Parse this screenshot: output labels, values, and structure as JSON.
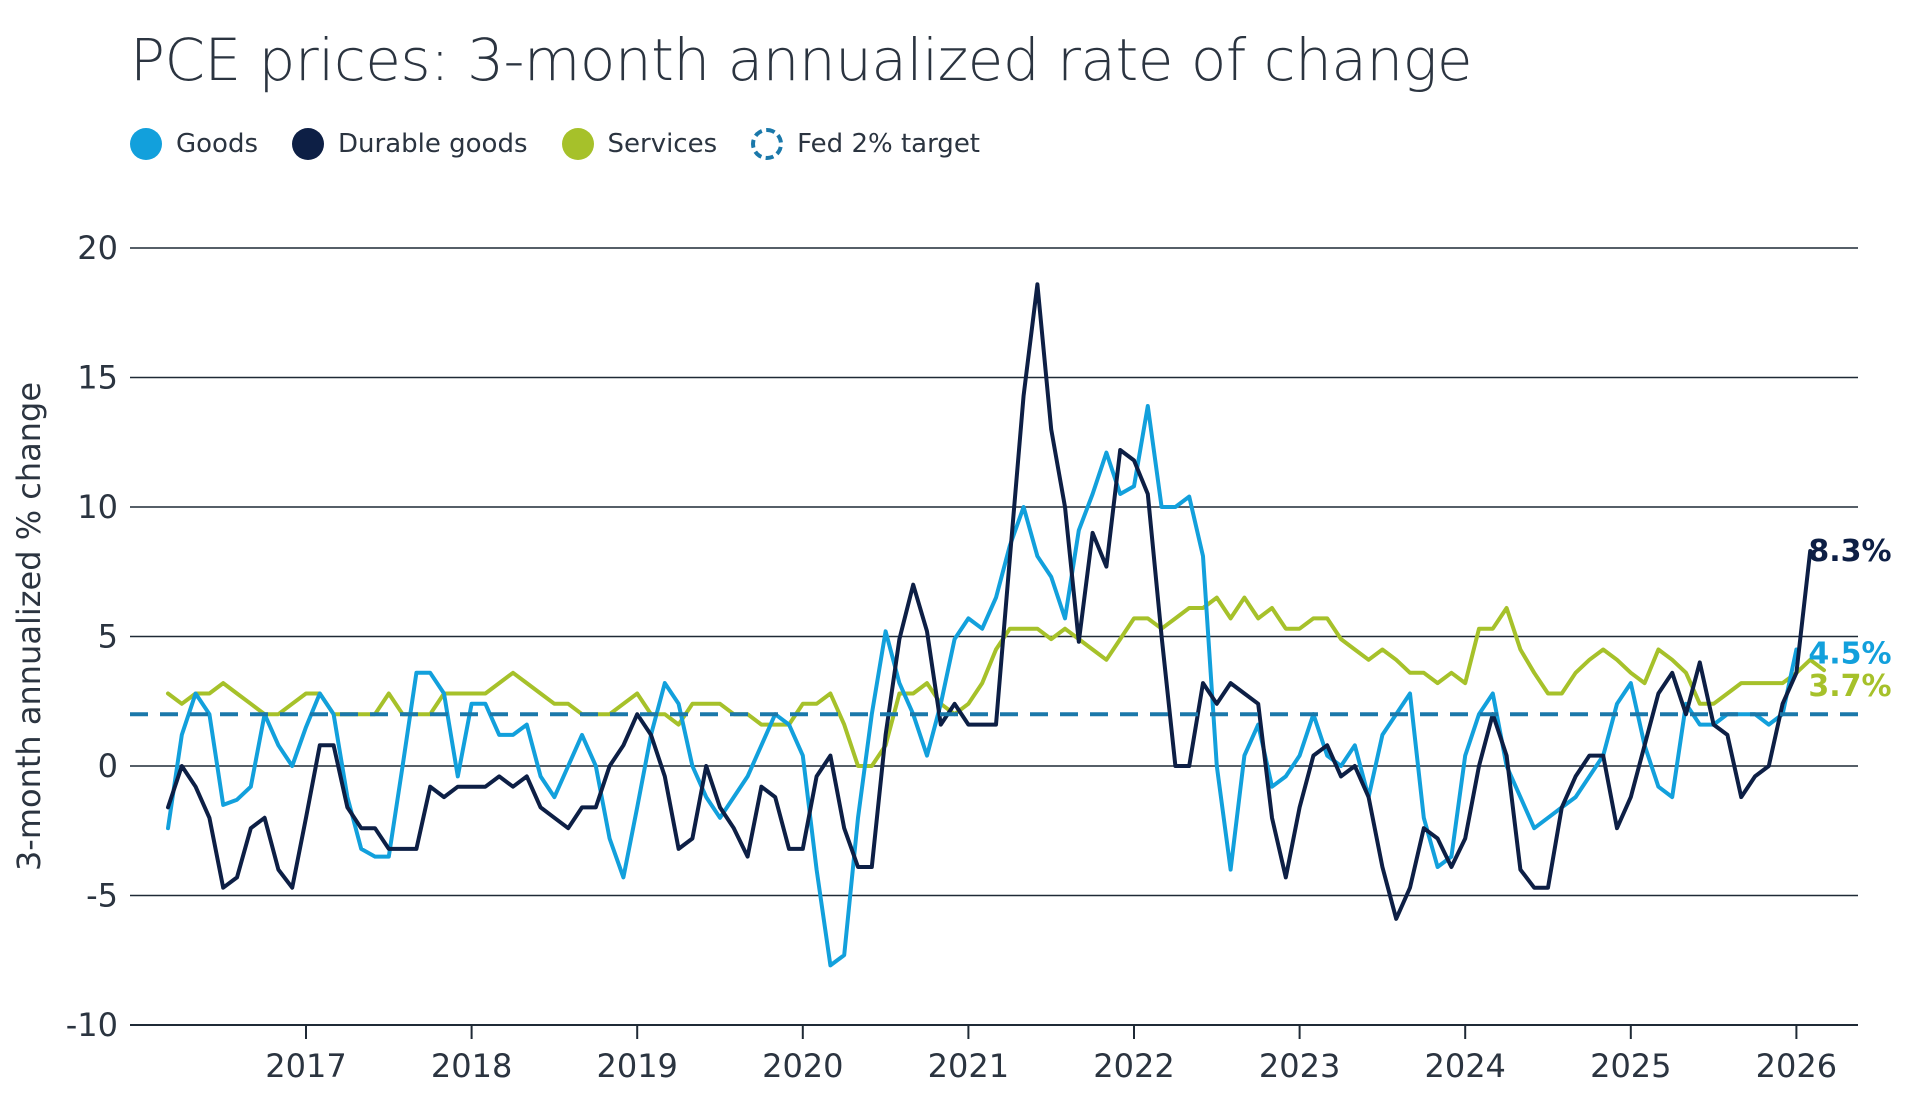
{
  "title": "PCE prices: 3-month annualized rate of change",
  "legend": [
    {
      "label": "Goods",
      "color": "#12a0dc",
      "style": "solid"
    },
    {
      "label": "Durable goods",
      "color": "#0d1f45",
      "style": "solid"
    },
    {
      "label": "Services",
      "color": "#a6c12a",
      "style": "solid"
    },
    {
      "label": "Fed 2% target",
      "color": "#1a78aa",
      "style": "dashed"
    }
  ],
  "chart_data": {
    "type": "line",
    "title": "PCE prices: 3-month annualized rate of change",
    "ylabel": "3-month annualized % change",
    "xlabel": "",
    "ylim": [
      -10,
      20
    ],
    "yticks": [
      20,
      15,
      10,
      5,
      0,
      -5,
      -10
    ],
    "xticks": [
      "2017",
      "2018",
      "2019",
      "2020",
      "2021",
      "2022",
      "2023",
      "2024",
      "2025",
      "2026"
    ],
    "x_start": "2016-03",
    "x_step": "1 month",
    "grid": "horizontal",
    "reference_line": {
      "label": "Fed 2% target",
      "value": 2,
      "color": "#1a78aa"
    },
    "series": [
      {
        "name": "Goods",
        "color": "#12a0dc",
        "end_label": "4.5%",
        "values": [
          -2.4,
          1.2,
          2.8,
          2.0,
          -1.5,
          -1.3,
          -0.8,
          2.0,
          0.8,
          0.0,
          1.5,
          2.8,
          2.0,
          -1.2,
          -3.2,
          -3.5,
          -3.5,
          0.0,
          3.6,
          3.6,
          2.8,
          -0.4,
          2.4,
          2.4,
          1.2,
          1.2,
          1.6,
          -0.4,
          -1.2,
          0.0,
          1.2,
          0.0,
          -2.8,
          -4.3,
          -1.6,
          1.2,
          3.2,
          2.4,
          0.0,
          -1.2,
          -2.0,
          -1.2,
          -0.4,
          0.8,
          2.0,
          1.6,
          0.4,
          -4.0,
          -7.7,
          -7.3,
          -2.0,
          2.0,
          5.2,
          3.2,
          2.0,
          0.4,
          2.4,
          4.9,
          5.7,
          5.3,
          6.5,
          8.5,
          10.0,
          8.1,
          7.3,
          5.7,
          9.1,
          10.5,
          12.1,
          10.5,
          10.8,
          13.9,
          10.0,
          10.0,
          10.4,
          8.1,
          0.0,
          -4.0,
          0.4,
          1.6,
          -0.8,
          -0.4,
          0.4,
          2.0,
          0.4,
          0.0,
          0.8,
          -1.2,
          1.2,
          2.0,
          2.8,
          -2.0,
          -3.9,
          -3.5,
          0.4,
          2.0,
          2.8,
          0.0,
          -1.2,
          -2.4,
          -2.0,
          -1.6,
          -1.2,
          -0.4,
          0.4,
          2.4,
          3.2,
          0.8,
          -0.8,
          -1.2,
          2.4,
          1.6,
          1.6,
          2.0,
          2.0,
          2.0,
          1.6,
          2.0,
          4.5
        ]
      },
      {
        "name": "Durable goods",
        "color": "#0d1f45",
        "end_label": "8.3%",
        "values": [
          -1.6,
          0.0,
          -0.8,
          -2.0,
          -4.7,
          -4.3,
          -2.4,
          -2.0,
          -4.0,
          -4.7,
          -2.0,
          0.8,
          0.8,
          -1.6,
          -2.4,
          -2.4,
          -3.2,
          -3.2,
          -3.2,
          -0.8,
          -1.2,
          -0.8,
          -0.8,
          -0.8,
          -0.4,
          -0.8,
          -0.4,
          -1.6,
          -2.0,
          -2.4,
          -1.6,
          -1.6,
          0.0,
          0.8,
          2.0,
          1.2,
          -0.4,
          -3.2,
          -2.8,
          0.0,
          -1.6,
          -2.4,
          -3.5,
          -0.8,
          -1.2,
          -3.2,
          -3.2,
          -0.4,
          0.4,
          -2.4,
          -3.9,
          -3.9,
          1.2,
          4.9,
          7.0,
          5.2,
          1.6,
          2.4,
          1.6,
          1.6,
          1.6,
          8.0,
          14.3,
          18.6,
          13.0,
          10.0,
          4.8,
          9.0,
          7.7,
          12.2,
          11.8,
          10.5,
          5.0,
          0.0,
          0.0,
          3.2,
          2.4,
          3.2,
          2.8,
          2.4,
          -2.0,
          -4.3,
          -1.6,
          0.4,
          0.8,
          -0.4,
          0.0,
          -1.2,
          -3.9,
          -5.9,
          -4.7,
          -2.4,
          -2.8,
          -3.9,
          -2.8,
          0.0,
          2.0,
          0.4,
          -4.0,
          -4.7,
          -4.7,
          -1.6,
          -0.4,
          0.4,
          0.4,
          -2.4,
          -1.2,
          0.8,
          2.8,
          3.6,
          2.0,
          4.0,
          1.6,
          1.2,
          -1.2,
          -0.4,
          0.0,
          2.4,
          3.6,
          8.3
        ]
      },
      {
        "name": "Services",
        "color": "#a6c12a",
        "end_label": "3.7%",
        "values": [
          2.8,
          2.4,
          2.8,
          2.8,
          3.2,
          2.8,
          2.4,
          2.0,
          2.0,
          2.4,
          2.8,
          2.8,
          2.0,
          2.0,
          2.0,
          2.0,
          2.8,
          2.0,
          2.0,
          2.0,
          2.8,
          2.8,
          2.8,
          2.8,
          3.2,
          3.6,
          3.2,
          2.8,
          2.4,
          2.4,
          2.0,
          2.0,
          2.0,
          2.4,
          2.8,
          2.0,
          2.0,
          1.6,
          2.4,
          2.4,
          2.4,
          2.0,
          2.0,
          1.6,
          1.6,
          1.6,
          2.4,
          2.4,
          2.8,
          1.6,
          0.0,
          0.0,
          0.8,
          2.8,
          2.8,
          3.2,
          2.4,
          2.0,
          2.4,
          3.2,
          4.5,
          5.3,
          5.3,
          5.3,
          4.9,
          5.3,
          4.9,
          4.5,
          4.1,
          4.9,
          5.7,
          5.7,
          5.3,
          5.7,
          6.1,
          6.1,
          6.5,
          5.7,
          6.5,
          5.7,
          6.1,
          5.3,
          5.3,
          5.7,
          5.7,
          4.9,
          4.5,
          4.1,
          4.5,
          4.1,
          3.6,
          3.6,
          3.2,
          3.6,
          3.2,
          5.3,
          5.3,
          6.1,
          4.5,
          3.6,
          2.8,
          2.8,
          3.6,
          4.1,
          4.5,
          4.1,
          3.6,
          3.2,
          4.5,
          4.1,
          3.6,
          2.4,
          2.4,
          2.8,
          3.2,
          3.2,
          3.2,
          3.2,
          3.6,
          4.1,
          3.7
        ]
      }
    ]
  }
}
